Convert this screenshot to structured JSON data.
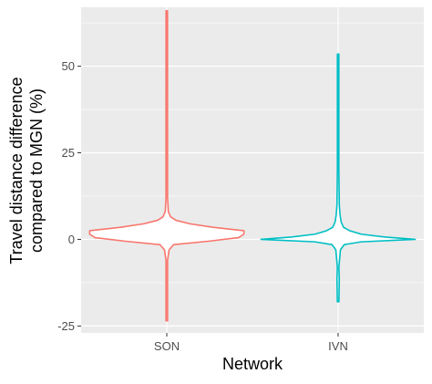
{
  "chart_data": {
    "type": "violin",
    "categories": [
      "SON",
      "IVN"
    ],
    "xlabel": "Network",
    "ylabel_lines": [
      "Travel distance difference",
      "compared to MGN (%)"
    ],
    "ylim": [
      -27,
      67
    ],
    "yticks": [
      -25,
      0,
      25,
      50
    ],
    "ytick_labels": [
      "-25",
      "0",
      "25",
      "50"
    ],
    "grid": true,
    "legend": "none",
    "series": [
      {
        "category": "SON",
        "color": "#F8766D",
        "min": -23.5,
        "max": 66,
        "profile": [
          [
            -23.5,
            0.01
          ],
          [
            -6,
            0.01
          ],
          [
            -3,
            0.03
          ],
          [
            -1.5,
            0.09
          ],
          [
            -0.5,
            0.55
          ],
          [
            0.5,
            0.93
          ],
          [
            1.5,
            1.0
          ],
          [
            2.5,
            1.0
          ],
          [
            3.5,
            0.6
          ],
          [
            4.5,
            0.3
          ],
          [
            5.5,
            0.12
          ],
          [
            6.5,
            0.05
          ],
          [
            8,
            0.02
          ],
          [
            12,
            0.01
          ],
          [
            66,
            0.005
          ]
        ]
      },
      {
        "category": "IVN",
        "color": "#00BFC4",
        "min": -18,
        "max": 53.5,
        "profile": [
          [
            -18,
            0.01
          ],
          [
            -11.5,
            0.015
          ],
          [
            -8,
            0.01
          ],
          [
            -3,
            0.03
          ],
          [
            -1.5,
            0.08
          ],
          [
            -0.7,
            0.3
          ],
          [
            0,
            1.0
          ],
          [
            0.7,
            0.6
          ],
          [
            1.5,
            0.3
          ],
          [
            2.5,
            0.15
          ],
          [
            3.5,
            0.07
          ],
          [
            5,
            0.04
          ],
          [
            7,
            0.025
          ],
          [
            10,
            0.015
          ],
          [
            20,
            0.008
          ],
          [
            53.5,
            0.005
          ]
        ]
      }
    ]
  }
}
